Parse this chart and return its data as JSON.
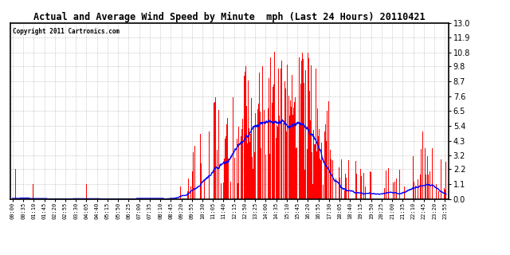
{
  "title": "Actual and Average Wind Speed by Minute  mph (Last 24 Hours) 20110421",
  "copyright": "Copyright 2011 Cartronics.com",
  "bar_color": "#FF0000",
  "line_color": "#0000FF",
  "background_color": "#FFFFFF",
  "grid_color": "#BBBBBB",
  "yticks": [
    0.0,
    1.1,
    2.2,
    3.2,
    4.3,
    5.4,
    6.5,
    7.6,
    8.7,
    9.8,
    10.8,
    11.9,
    13.0
  ],
  "ylim": [
    0.0,
    13.0
  ],
  "time_labels": [
    "00:00",
    "00:35",
    "01:10",
    "01:45",
    "02:20",
    "02:55",
    "03:30",
    "04:05",
    "04:40",
    "05:15",
    "05:50",
    "06:25",
    "07:00",
    "07:35",
    "08:10",
    "08:45",
    "09:20",
    "09:55",
    "10:30",
    "11:05",
    "11:40",
    "12:15",
    "12:50",
    "13:25",
    "14:00",
    "14:35",
    "15:10",
    "15:45",
    "16:20",
    "16:55",
    "17:30",
    "18:05",
    "18:40",
    "19:15",
    "19:50",
    "20:25",
    "21:00",
    "21:35",
    "22:10",
    "22:45",
    "23:20",
    "23:55"
  ]
}
